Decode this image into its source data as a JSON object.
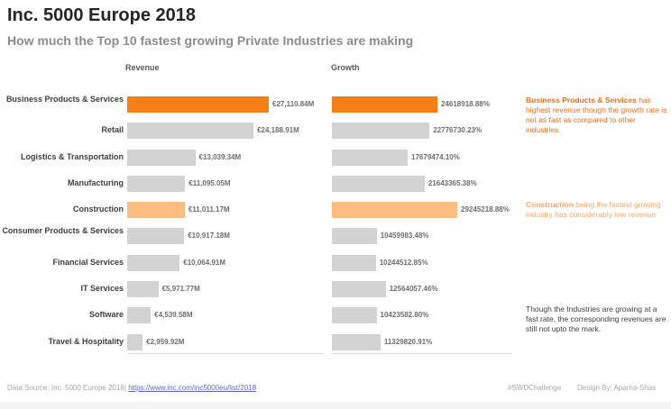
{
  "header": {
    "title": "Inc. 5000 Europe 2018",
    "subtitle": "How much the Top 10 fastest growing Private Industries are making"
  },
  "chart_data": {
    "type": "bar",
    "orientation": "horizontal",
    "categories": [
      "Business Products & Services",
      "Retail",
      "Logistics & Transportation",
      "Manufacturing",
      "Construction",
      "Consumer Products & Services",
      "Financial Services",
      "IT Services",
      "Software",
      "Travel & Hospitality"
    ],
    "series": [
      {
        "name": "Revenue",
        "values": [
          27110.84,
          24188.91,
          13039.34,
          11095.05,
          11011.17,
          10917.18,
          10064.91,
          5971.77,
          4539.58,
          2959.92
        ],
        "labels": [
          "€27,110.84M",
          "€24,188.91M",
          "€13,039.34M",
          "€11,095.05M",
          "€11,011.17M",
          "€10,917.18M",
          "€10,064.91M",
          "€5,971.77M",
          "€4,539.58M",
          "€2,959.92M"
        ]
      },
      {
        "name": "Growth",
        "values": [
          24618918.88,
          22776730.23,
          17679474.1,
          21643365.38,
          29245218.88,
          10459983.48,
          10244512.85,
          12564057.46,
          10423582.8,
          11329820.91
        ],
        "labels": [
          "24618918.88%",
          "22776730.23%",
          "17679474.10%",
          "21643365.38%",
          "29245218.88%",
          "10459983.48%",
          "10244512.85%",
          "12564057.46%",
          "10423582.80%",
          "11329820.91%"
        ]
      }
    ],
    "colors": {
      "default": "#d3d3d3",
      "highlight_primary": "#f57f17",
      "highlight_secondary": "#fdbc80"
    },
    "highlights": {
      "Business Products & Services": "highlight_primary",
      "Construction": "highlight_secondary"
    },
    "grid": false,
    "legend": "none"
  },
  "annotations": {
    "business": {
      "bold": "Business Products & Services",
      "text": " has highest revenue though the growth rate is not as fast as compared to other industries"
    },
    "construction": {
      "bold": "Construction",
      "text": " being the fastest growing industry has considerably low revenue"
    },
    "general": "Though the Industries are growing at a fast rate, the corresponding revenues are still not upto the mark."
  },
  "footer": {
    "source_prefix": "Data Source: Inc. 5000 Europe 2018|",
    "source_link": "https://www.inc.com/inc5000eu/list/2018",
    "hashtag": "#SWDChallenge",
    "credit": "Design By: Aparna-Shas"
  }
}
